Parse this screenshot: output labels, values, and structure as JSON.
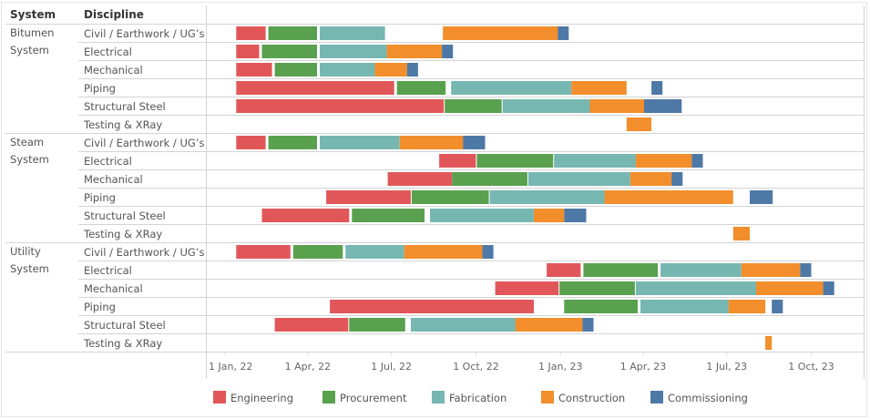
{
  "headers": {
    "system": "System",
    "discipline": "Discipline"
  },
  "chart_data": {
    "type": "gantt",
    "title": "",
    "xlabel": "",
    "ylabel": "",
    "x_range": [
      "2021-12-13",
      "2023-11-27"
    ],
    "x_ticks": [
      {
        "date": "2022-01-01",
        "label": "1 Jan, 22"
      },
      {
        "date": "2022-04-01",
        "label": "1 Apr, 22"
      },
      {
        "date": "2022-07-01",
        "label": "1 Jul, 22"
      },
      {
        "date": "2022-10-01",
        "label": "1 Oct, 22"
      },
      {
        "date": "2023-01-01",
        "label": "1 Jan, 23"
      },
      {
        "date": "2023-04-01",
        "label": "1 Apr, 23"
      },
      {
        "date": "2023-07-01",
        "label": "1 Jul, 23"
      },
      {
        "date": "2023-10-01",
        "label": "1 Oct, 23"
      }
    ],
    "grid": false,
    "legend_position": "bottom",
    "phases": [
      {
        "name": "Engineering",
        "color": "#e15759"
      },
      {
        "name": "Procurement",
        "color": "#59a14f"
      },
      {
        "name": "Fabrication",
        "color": "#76b7b2"
      },
      {
        "name": "Construction",
        "color": "#f28e2b"
      },
      {
        "name": "Commissioning",
        "color": "#4e79a7"
      }
    ],
    "systems": [
      {
        "name": "Bitumen System",
        "label_lines": [
          "Bitumen",
          "System"
        ],
        "disciplines": [
          {
            "name": "Civil / Earthwork / UG’s",
            "tasks": [
              {
                "phase": "Engineering",
                "start": "2022-01-13",
                "end": "2022-02-14"
              },
              {
                "phase": "Procurement",
                "start": "2022-02-17",
                "end": "2022-04-11"
              },
              {
                "phase": "Fabrication",
                "start": "2022-04-14",
                "end": "2022-06-24"
              },
              {
                "phase": "Construction",
                "start": "2022-08-26",
                "end": "2022-12-29"
              },
              {
                "phase": "Commissioning",
                "start": "2022-12-29",
                "end": "2023-01-10"
              }
            ]
          },
          {
            "name": "Electrical",
            "tasks": [
              {
                "phase": "Engineering",
                "start": "2022-01-13",
                "end": "2022-02-07"
              },
              {
                "phase": "Procurement",
                "start": "2022-02-10",
                "end": "2022-04-11"
              },
              {
                "phase": "Fabrication",
                "start": "2022-04-14",
                "end": "2022-06-26"
              },
              {
                "phase": "Construction",
                "start": "2022-06-26",
                "end": "2022-08-25"
              },
              {
                "phase": "Commissioning",
                "start": "2022-08-25",
                "end": "2022-09-06"
              }
            ]
          },
          {
            "name": "Mechanical",
            "tasks": [
              {
                "phase": "Engineering",
                "start": "2022-01-13",
                "end": "2022-02-21"
              },
              {
                "phase": "Procurement",
                "start": "2022-02-24",
                "end": "2022-04-11"
              },
              {
                "phase": "Fabrication",
                "start": "2022-04-14",
                "end": "2022-06-13"
              },
              {
                "phase": "Construction",
                "start": "2022-06-13",
                "end": "2022-07-18"
              },
              {
                "phase": "Commissioning",
                "start": "2022-07-18",
                "end": "2022-07-30"
              }
            ]
          },
          {
            "name": "Piping",
            "tasks": [
              {
                "phase": "Engineering",
                "start": "2022-01-13",
                "end": "2022-07-04"
              },
              {
                "phase": "Procurement",
                "start": "2022-07-07",
                "end": "2022-08-29"
              },
              {
                "phase": "Fabrication",
                "start": "2022-09-04",
                "end": "2023-01-13"
              },
              {
                "phase": "Construction",
                "start": "2023-01-13",
                "end": "2023-03-14"
              },
              {
                "phase": "Commissioning",
                "start": "2023-04-10",
                "end": "2023-04-22"
              }
            ]
          },
          {
            "name": "Structural Steel",
            "tasks": [
              {
                "phase": "Engineering",
                "start": "2022-01-13",
                "end": "2022-08-27"
              },
              {
                "phase": "Procurement",
                "start": "2022-08-28",
                "end": "2022-10-29"
              },
              {
                "phase": "Fabrication",
                "start": "2022-10-30",
                "end": "2023-02-02"
              },
              {
                "phase": "Construction",
                "start": "2023-02-02",
                "end": "2023-04-02"
              },
              {
                "phase": "Commissioning",
                "start": "2023-04-02",
                "end": "2023-05-13"
              }
            ]
          },
          {
            "name": "Testing & XRay",
            "tasks": [
              {
                "phase": "Construction",
                "start": "2023-03-14",
                "end": "2023-04-10"
              }
            ]
          }
        ]
      },
      {
        "name": "Steam System",
        "label_lines": [
          "Steam",
          "System"
        ],
        "disciplines": [
          {
            "name": "Civil / Earthwork / UG’s",
            "tasks": [
              {
                "phase": "Engineering",
                "start": "2022-01-13",
                "end": "2022-02-14"
              },
              {
                "phase": "Procurement",
                "start": "2022-02-17",
                "end": "2022-04-11"
              },
              {
                "phase": "Fabrication",
                "start": "2022-04-14",
                "end": "2022-07-10"
              },
              {
                "phase": "Construction",
                "start": "2022-07-10",
                "end": "2022-09-17"
              },
              {
                "phase": "Commissioning",
                "start": "2022-09-17",
                "end": "2022-10-11"
              }
            ]
          },
          {
            "name": "Electrical",
            "tasks": [
              {
                "phase": "Engineering",
                "start": "2022-08-22",
                "end": "2022-10-01"
              },
              {
                "phase": "Procurement",
                "start": "2022-10-02",
                "end": "2022-12-24"
              },
              {
                "phase": "Fabrication",
                "start": "2022-12-25",
                "end": "2023-03-24"
              },
              {
                "phase": "Construction",
                "start": "2023-03-24",
                "end": "2023-05-24"
              },
              {
                "phase": "Commissioning",
                "start": "2023-05-24",
                "end": "2023-06-05"
              }
            ]
          },
          {
            "name": "Mechanical",
            "tasks": [
              {
                "phase": "Engineering",
                "start": "2022-06-27",
                "end": "2022-09-05"
              },
              {
                "phase": "Procurement",
                "start": "2022-09-05",
                "end": "2022-11-26"
              },
              {
                "phase": "Fabrication",
                "start": "2022-11-27",
                "end": "2023-03-18"
              },
              {
                "phase": "Construction",
                "start": "2023-03-18",
                "end": "2023-05-02"
              },
              {
                "phase": "Commissioning",
                "start": "2023-05-02",
                "end": "2023-05-14"
              }
            ]
          },
          {
            "name": "Piping",
            "tasks": [
              {
                "phase": "Engineering",
                "start": "2022-04-21",
                "end": "2022-07-22"
              },
              {
                "phase": "Procurement",
                "start": "2022-07-23",
                "end": "2022-10-15"
              },
              {
                "phase": "Fabrication",
                "start": "2022-10-16",
                "end": "2023-02-18"
              },
              {
                "phase": "Construction",
                "start": "2023-02-18",
                "end": "2023-07-08"
              },
              {
                "phase": "Commissioning",
                "start": "2023-07-26",
                "end": "2023-08-20"
              }
            ]
          },
          {
            "name": "Structural Steel",
            "tasks": [
              {
                "phase": "Engineering",
                "start": "2022-02-10",
                "end": "2022-05-16"
              },
              {
                "phase": "Procurement",
                "start": "2022-05-19",
                "end": "2022-08-06"
              },
              {
                "phase": "Fabrication",
                "start": "2022-08-12",
                "end": "2022-12-03"
              },
              {
                "phase": "Construction",
                "start": "2022-12-03",
                "end": "2023-01-05"
              },
              {
                "phase": "Commissioning",
                "start": "2023-01-05",
                "end": "2023-01-29"
              }
            ]
          },
          {
            "name": "Testing & XRay",
            "tasks": [
              {
                "phase": "Construction",
                "start": "2023-07-08",
                "end": "2023-07-26"
              }
            ]
          }
        ]
      },
      {
        "name": "Utility System",
        "label_lines": [
          "Utility",
          "System"
        ],
        "disciplines": [
          {
            "name": "Civil / Earthwork / UG’s",
            "tasks": [
              {
                "phase": "Engineering",
                "start": "2022-01-13",
                "end": "2022-03-13"
              },
              {
                "phase": "Procurement",
                "start": "2022-03-16",
                "end": "2022-05-09"
              },
              {
                "phase": "Fabrication",
                "start": "2022-05-12",
                "end": "2022-07-15"
              },
              {
                "phase": "Construction",
                "start": "2022-07-15",
                "end": "2022-10-08"
              },
              {
                "phase": "Commissioning",
                "start": "2022-10-08",
                "end": "2022-10-20"
              }
            ]
          },
          {
            "name": "Electrical",
            "tasks": [
              {
                "phase": "Engineering",
                "start": "2022-12-17",
                "end": "2023-01-23"
              },
              {
                "phase": "Procurement",
                "start": "2023-01-26",
                "end": "2023-04-17"
              },
              {
                "phase": "Fabrication",
                "start": "2023-04-20",
                "end": "2023-07-17"
              },
              {
                "phase": "Construction",
                "start": "2023-07-17",
                "end": "2023-09-19"
              },
              {
                "phase": "Commissioning",
                "start": "2023-09-19",
                "end": "2023-10-01"
              }
            ]
          },
          {
            "name": "Mechanical",
            "tasks": [
              {
                "phase": "Engineering",
                "start": "2022-10-22",
                "end": "2022-12-30"
              },
              {
                "phase": "Procurement",
                "start": "2022-12-31",
                "end": "2023-03-23"
              },
              {
                "phase": "Fabrication",
                "start": "2023-03-24",
                "end": "2023-08-02"
              },
              {
                "phase": "Construction",
                "start": "2023-08-02",
                "end": "2023-10-14"
              },
              {
                "phase": "Commissioning",
                "start": "2023-10-14",
                "end": "2023-10-26"
              }
            ]
          },
          {
            "name": "Piping",
            "tasks": [
              {
                "phase": "Engineering",
                "start": "2022-04-25",
                "end": "2022-12-03"
              },
              {
                "phase": "Procurement",
                "start": "2023-01-05",
                "end": "2023-03-26"
              },
              {
                "phase": "Fabrication",
                "start": "2023-03-29",
                "end": "2023-07-03"
              },
              {
                "phase": "Construction",
                "start": "2023-07-03",
                "end": "2023-08-12"
              },
              {
                "phase": "Commissioning",
                "start": "2023-08-19",
                "end": "2023-08-31"
              }
            ]
          },
          {
            "name": "Structural Steel",
            "tasks": [
              {
                "phase": "Engineering",
                "start": "2022-02-24",
                "end": "2022-05-15"
              },
              {
                "phase": "Procurement",
                "start": "2022-05-16",
                "end": "2022-07-16"
              },
              {
                "phase": "Fabrication",
                "start": "2022-07-22",
                "end": "2022-11-13"
              },
              {
                "phase": "Construction",
                "start": "2022-11-13",
                "end": "2023-01-25"
              },
              {
                "phase": "Commissioning",
                "start": "2023-01-25",
                "end": "2023-02-06"
              }
            ]
          },
          {
            "name": "Testing & XRay",
            "tasks": [
              {
                "phase": "Construction",
                "start": "2023-08-12",
                "end": "2023-08-19"
              }
            ]
          }
        ]
      }
    ]
  }
}
